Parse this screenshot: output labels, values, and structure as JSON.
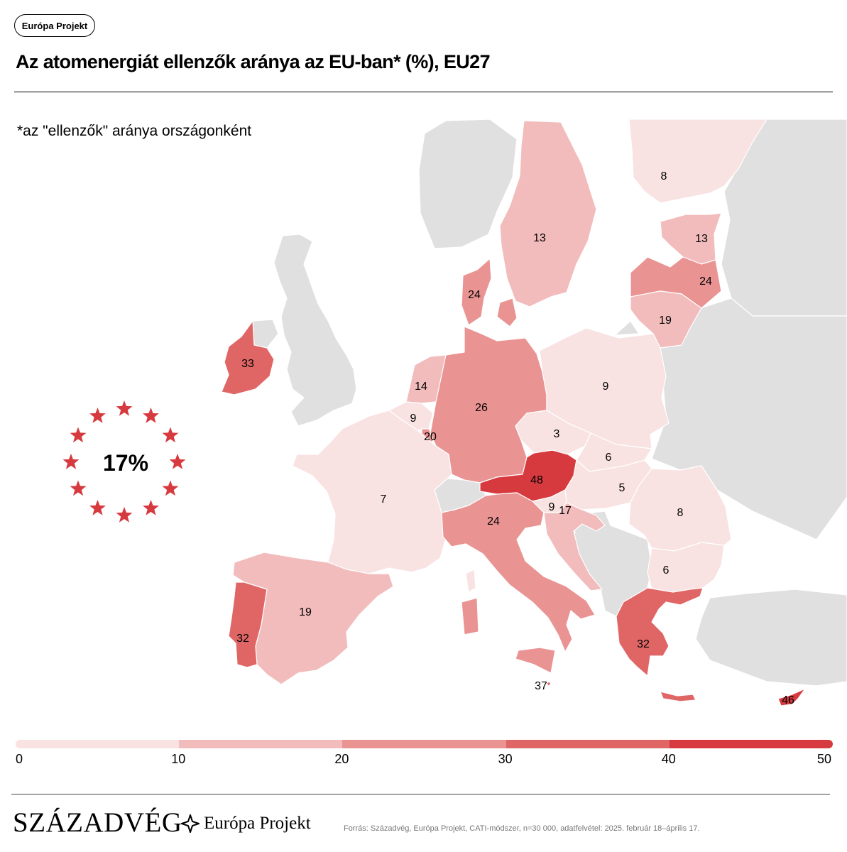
{
  "header": {
    "badge": "Európa Projekt",
    "title": "Az atomenergiát ellenzők aránya az EU-ban* (%), EU27",
    "subtitle": "*az \"ellenzők\" aránya országonként"
  },
  "summary": {
    "eu_value": "17%"
  },
  "colors": {
    "nonEU": "#e0e0e0",
    "border": "#ffffff",
    "star": "#d63a3f",
    "scale": [
      "#f9e2e2",
      "#f2bcbc",
      "#ea9393",
      "#e06666",
      "#d63a3f"
    ]
  },
  "legend": {
    "ticks": [
      "0",
      "10",
      "20",
      "30",
      "40",
      "50"
    ],
    "breaks": [
      0,
      10,
      20,
      30,
      40,
      50
    ]
  },
  "countries": [
    {
      "id": "finland",
      "label": "8",
      "value": 8
    },
    {
      "id": "sweden",
      "label": "13",
      "value": 13
    },
    {
      "id": "estonia",
      "label": "13",
      "value": 13
    },
    {
      "id": "latvia",
      "label": "24",
      "value": 24
    },
    {
      "id": "lithuania",
      "label": "19",
      "value": 19
    },
    {
      "id": "denmark",
      "label": "24",
      "value": 24
    },
    {
      "id": "ireland",
      "label": "33",
      "value": 33
    },
    {
      "id": "netherlands",
      "label": "14",
      "value": 14
    },
    {
      "id": "belgium",
      "label": "9",
      "value": 9
    },
    {
      "id": "luxembourg",
      "label": "20",
      "value": 20
    },
    {
      "id": "germany",
      "label": "26",
      "value": 26
    },
    {
      "id": "poland",
      "label": "9",
      "value": 9
    },
    {
      "id": "czechia",
      "label": "3",
      "value": 3
    },
    {
      "id": "slovakia",
      "label": "6",
      "value": 6
    },
    {
      "id": "austria",
      "label": "48",
      "value": 48
    },
    {
      "id": "hungary",
      "label": "5",
      "value": 5
    },
    {
      "id": "slovenia",
      "label": "9",
      "value": 9
    },
    {
      "id": "croatia",
      "label": "17",
      "value": 17
    },
    {
      "id": "romania",
      "label": "8",
      "value": 8
    },
    {
      "id": "bulgaria",
      "label": "6",
      "value": 6
    },
    {
      "id": "france",
      "label": "7",
      "value": 7
    },
    {
      "id": "italy",
      "label": "24",
      "value": 24
    },
    {
      "id": "spain",
      "label": "19",
      "value": 19
    },
    {
      "id": "portugal",
      "label": "32",
      "value": 32
    },
    {
      "id": "greece",
      "label": "32",
      "value": 32
    },
    {
      "id": "malta",
      "label": "37",
      "value": 37
    },
    {
      "id": "cyprus",
      "label": "46",
      "value": 46
    }
  ],
  "footer": {
    "brand1": "SZÁZADVÉG",
    "brand2": "Európa Projekt",
    "source": "Forrás: Századvég, Európa Projekt, CATI-módszer, n=30 000, adatfelvétel: 2025. február 18–április 17."
  }
}
